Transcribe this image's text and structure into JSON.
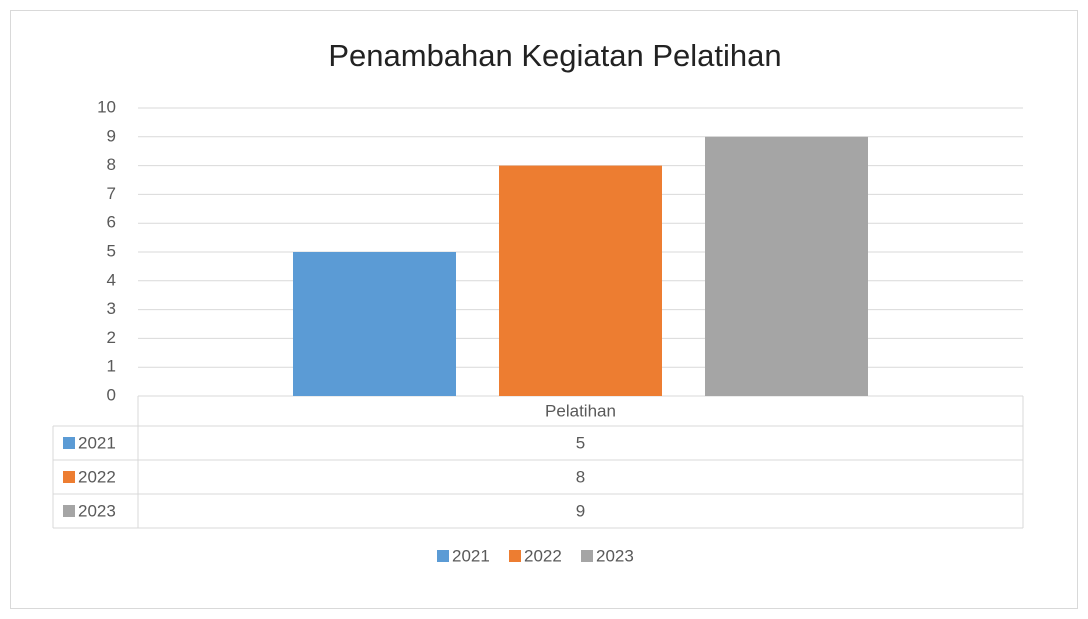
{
  "chart_data": {
    "type": "bar",
    "title": "Penambahan Kegiatan Pelatihan",
    "categories": [
      "Pelatihan"
    ],
    "series": [
      {
        "name": "2021",
        "color": "#5b9bd5",
        "values": [
          5
        ]
      },
      {
        "name": "2022",
        "color": "#ed7d31",
        "values": [
          8
        ]
      },
      {
        "name": "2023",
        "color": "#a5a5a5",
        "values": [
          9
        ]
      }
    ],
    "ylim": [
      0,
      10
    ],
    "yticks": [
      0,
      1,
      2,
      3,
      4,
      5,
      6,
      7,
      8,
      9,
      10
    ],
    "grid": true,
    "legend": "bottom",
    "data_table": true
  }
}
